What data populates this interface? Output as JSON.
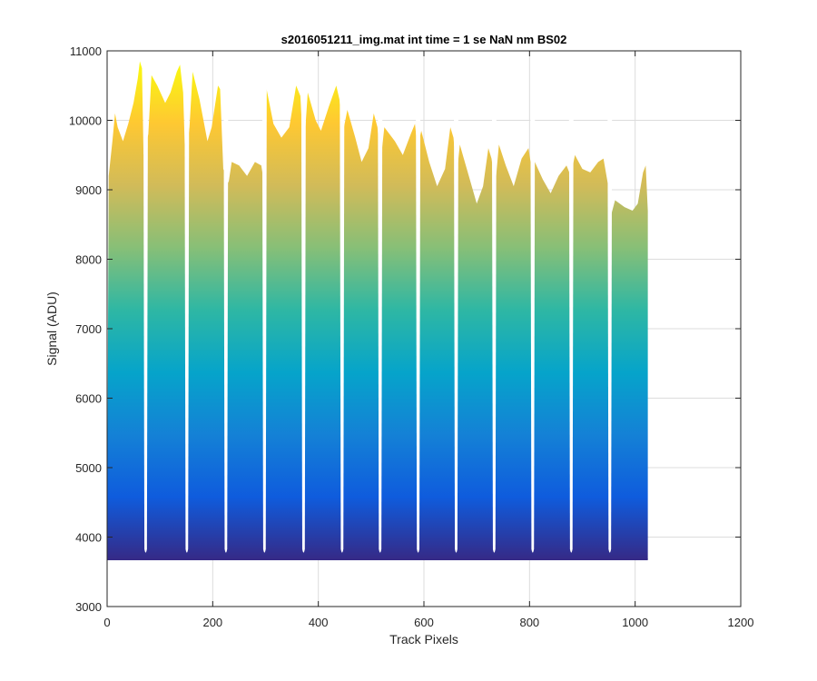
{
  "chart_data": {
    "type": "area",
    "title": "s2016051211_img.mat int time = 1 se  NaN nm BS02",
    "xlabel": "Track Pixels",
    "ylabel": "Signal (ADU)",
    "xlim": [
      0,
      1200
    ],
    "ylim": [
      3000,
      11000
    ],
    "xticks": [
      0,
      200,
      400,
      600,
      800,
      1000,
      1200
    ],
    "yticks": [
      3000,
      4000,
      5000,
      6000,
      7000,
      8000,
      9000,
      10000,
      11000
    ],
    "grid": true,
    "colormap": "parula",
    "baseline": 3680,
    "colors": {
      "colormap_stops": [
        "#352a87",
        "#0f5cdd",
        "#1481d6",
        "#06a4ca",
        "#2eb7a4",
        "#87bf77",
        "#d1bb59",
        "#fec832",
        "#f9fb0e"
      ],
      "grid": "#dcdcdc",
      "axis": "#262626"
    },
    "data_range": [
      0,
      1024
    ],
    "trough_minimum": 3750,
    "troughs": [
      {
        "x": 73,
        "y": 3750
      },
      {
        "x": 151,
        "y": 3750
      },
      {
        "x": 225,
        "y": 3750
      },
      {
        "x": 298,
        "y": 3750
      },
      {
        "x": 372,
        "y": 3750
      },
      {
        "x": 445,
        "y": 3750
      },
      {
        "x": 517,
        "y": 3750
      },
      {
        "x": 589,
        "y": 3750
      },
      {
        "x": 661,
        "y": 3750
      },
      {
        "x": 733,
        "y": 3750
      },
      {
        "x": 806,
        "y": 3750
      },
      {
        "x": 879,
        "y": 3750
      },
      {
        "x": 952,
        "y": 3750
      }
    ],
    "envelope": [
      {
        "x": 0,
        "y": 4000
      },
      {
        "x": 3,
        "y": 9200
      },
      {
        "x": 10,
        "y": 9700
      },
      {
        "x": 15,
        "y": 10100
      },
      {
        "x": 20,
        "y": 9900
      },
      {
        "x": 30,
        "y": 9700
      },
      {
        "x": 40,
        "y": 9950
      },
      {
        "x": 50,
        "y": 10250
      },
      {
        "x": 58,
        "y": 10600
      },
      {
        "x": 62,
        "y": 10850
      },
      {
        "x": 66,
        "y": 10750
      },
      {
        "x": 69,
        "y": 9500
      },
      {
        "x": 78,
        "y": 9800
      },
      {
        "x": 84,
        "y": 10650
      },
      {
        "x": 95,
        "y": 10500
      },
      {
        "x": 110,
        "y": 10250
      },
      {
        "x": 120,
        "y": 10400
      },
      {
        "x": 132,
        "y": 10700
      },
      {
        "x": 138,
        "y": 10800
      },
      {
        "x": 144,
        "y": 10400
      },
      {
        "x": 148,
        "y": 9400
      },
      {
        "x": 156,
        "y": 9900
      },
      {
        "x": 162,
        "y": 10700
      },
      {
        "x": 175,
        "y": 10300
      },
      {
        "x": 190,
        "y": 9700
      },
      {
        "x": 198,
        "y": 9900
      },
      {
        "x": 210,
        "y": 10500
      },
      {
        "x": 214,
        "y": 10450
      },
      {
        "x": 220,
        "y": 9300
      },
      {
        "x": 230,
        "y": 9100
      },
      {
        "x": 236,
        "y": 9400
      },
      {
        "x": 250,
        "y": 9350
      },
      {
        "x": 265,
        "y": 9200
      },
      {
        "x": 280,
        "y": 9400
      },
      {
        "x": 292,
        "y": 9350
      },
      {
        "x": 297,
        "y": 9100
      },
      {
        "x": 302,
        "y": 10450
      },
      {
        "x": 315,
        "y": 9950
      },
      {
        "x": 330,
        "y": 9750
      },
      {
        "x": 345,
        "y": 9900
      },
      {
        "x": 358,
        "y": 10500
      },
      {
        "x": 366,
        "y": 10350
      },
      {
        "x": 372,
        "y": 9500
      },
      {
        "x": 380,
        "y": 10400
      },
      {
        "x": 395,
        "y": 10000
      },
      {
        "x": 405,
        "y": 9850
      },
      {
        "x": 420,
        "y": 10200
      },
      {
        "x": 434,
        "y": 10500
      },
      {
        "x": 440,
        "y": 10300
      },
      {
        "x": 446,
        "y": 9800
      },
      {
        "x": 455,
        "y": 10150
      },
      {
        "x": 470,
        "y": 9750
      },
      {
        "x": 482,
        "y": 9400
      },
      {
        "x": 495,
        "y": 9600
      },
      {
        "x": 505,
        "y": 10100
      },
      {
        "x": 512,
        "y": 9900
      },
      {
        "x": 518,
        "y": 9400
      },
      {
        "x": 525,
        "y": 9900
      },
      {
        "x": 545,
        "y": 9700
      },
      {
        "x": 560,
        "y": 9500
      },
      {
        "x": 575,
        "y": 9800
      },
      {
        "x": 583,
        "y": 9950
      },
      {
        "x": 588,
        "y": 9600
      },
      {
        "x": 595,
        "y": 9850
      },
      {
        "x": 610,
        "y": 9400
      },
      {
        "x": 625,
        "y": 9050
      },
      {
        "x": 640,
        "y": 9300
      },
      {
        "x": 650,
        "y": 9900
      },
      {
        "x": 656,
        "y": 9750
      },
      {
        "x": 662,
        "y": 9200
      },
      {
        "x": 668,
        "y": 9650
      },
      {
        "x": 685,
        "y": 9200
      },
      {
        "x": 700,
        "y": 8800
      },
      {
        "x": 712,
        "y": 9050
      },
      {
        "x": 722,
        "y": 9600
      },
      {
        "x": 728,
        "y": 9450
      },
      {
        "x": 735,
        "y": 9050
      },
      {
        "x": 742,
        "y": 9650
      },
      {
        "x": 755,
        "y": 9350
      },
      {
        "x": 770,
        "y": 9050
      },
      {
        "x": 785,
        "y": 9450
      },
      {
        "x": 798,
        "y": 9600
      },
      {
        "x": 804,
        "y": 9300
      },
      {
        "x": 810,
        "y": 9400
      },
      {
        "x": 825,
        "y": 9150
      },
      {
        "x": 840,
        "y": 8950
      },
      {
        "x": 855,
        "y": 9200
      },
      {
        "x": 870,
        "y": 9350
      },
      {
        "x": 878,
        "y": 9200
      },
      {
        "x": 886,
        "y": 9500
      },
      {
        "x": 900,
        "y": 9300
      },
      {
        "x": 915,
        "y": 9250
      },
      {
        "x": 930,
        "y": 9400
      },
      {
        "x": 940,
        "y": 9450
      },
      {
        "x": 948,
        "y": 9100
      },
      {
        "x": 955,
        "y": 8650
      },
      {
        "x": 962,
        "y": 8850
      },
      {
        "x": 980,
        "y": 8750
      },
      {
        "x": 995,
        "y": 8700
      },
      {
        "x": 1005,
        "y": 8800
      },
      {
        "x": 1015,
        "y": 9250
      },
      {
        "x": 1020,
        "y": 9350
      },
      {
        "x": 1024,
        "y": 8700
      }
    ]
  }
}
